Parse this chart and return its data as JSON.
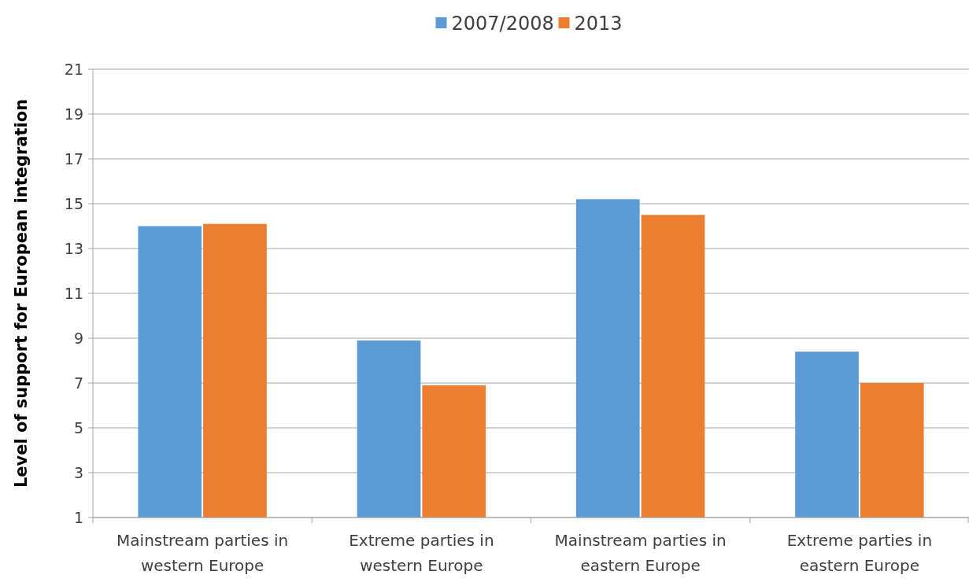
{
  "chart_data": {
    "type": "bar",
    "ylabel": "Level of support for European integration",
    "categories": [
      "Mainstream parties in western Europe",
      "Extreme parties in western Europe",
      "Mainstream parties in eastern Europe",
      "Extreme parties in eastern Europe"
    ],
    "series": [
      {
        "name": "2007/2008",
        "color": "#5b9bd5",
        "values": [
          14.0,
          8.9,
          15.2,
          8.4
        ]
      },
      {
        "name": "2013",
        "color": "#ed7d31",
        "values": [
          14.1,
          6.9,
          14.5,
          7.0
        ]
      }
    ],
    "ylim": [
      1,
      21
    ],
    "yticks": [
      1,
      3,
      5,
      7,
      9,
      11,
      13,
      15,
      17,
      19,
      21
    ],
    "grid": "y",
    "legend": "top"
  }
}
